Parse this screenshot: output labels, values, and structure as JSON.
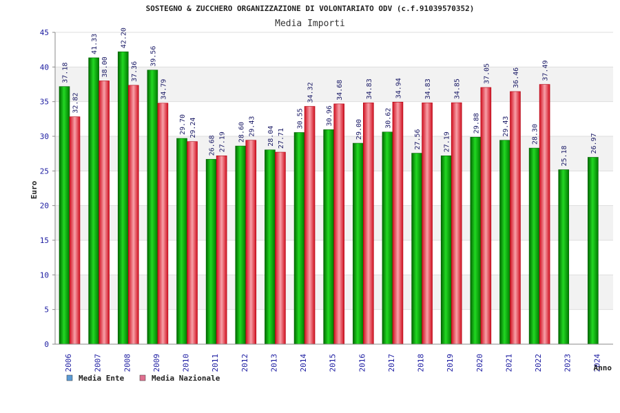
{
  "chart_data": {
    "type": "bar",
    "title": "SOSTEGNO & ZUCCHERO ORGANIZZAZIONE DI VOLONTARIATO ODV (c.f.91039570352)",
    "subtitle": "Media Importi",
    "ylabel": "Euro",
    "xlabel": "Anno",
    "ylim": [
      0,
      45
    ],
    "yticks": [
      0,
      5,
      10,
      15,
      20,
      25,
      30,
      35,
      40,
      45
    ],
    "grid": true,
    "legend_position": "bottom-left",
    "categories": [
      "2006",
      "2007",
      "2008",
      "2009",
      "2010",
      "2011",
      "2012",
      "2013",
      "2014",
      "2015",
      "2016",
      "2017",
      "2018",
      "2019",
      "2020",
      "2021",
      "2022",
      "2023",
      "2024"
    ],
    "series": [
      {
        "name": "Media Ente",
        "color": "#10a010",
        "legend_color": "#5b9bd5",
        "values": [
          37.18,
          41.33,
          42.2,
          39.56,
          29.7,
          26.68,
          28.6,
          28.04,
          30.55,
          30.96,
          29.0,
          30.62,
          27.56,
          27.19,
          29.88,
          29.43,
          28.3,
          25.18,
          26.97
        ],
        "labels": [
          "37.18",
          "41.33",
          "42.20",
          "39.56",
          "29.70",
          "26.68",
          "28.60",
          "28.04",
          "30.55",
          "30.96",
          "29.00",
          "30.62",
          "27.56",
          "27.19",
          "29.88",
          "29.43",
          "28.30",
          "25.18",
          "26.97"
        ]
      },
      {
        "name": "Media Nazionale",
        "color": "#e02030",
        "legend_color": "#e07090",
        "values": [
          32.82,
          38.0,
          37.36,
          34.79,
          29.24,
          27.19,
          29.43,
          27.71,
          34.32,
          34.68,
          34.83,
          34.94,
          34.83,
          34.85,
          37.05,
          36.46,
          37.49,
          null,
          null
        ],
        "labels": [
          "32.82",
          "38.00",
          "37.36",
          "34.79",
          "29.24",
          "27.19",
          "29.43",
          "27.71",
          "34.32",
          "34.68",
          "34.83",
          "34.94",
          "34.83",
          "34.85",
          "37.05",
          "36.46",
          "37.49",
          "",
          ""
        ]
      }
    ]
  }
}
